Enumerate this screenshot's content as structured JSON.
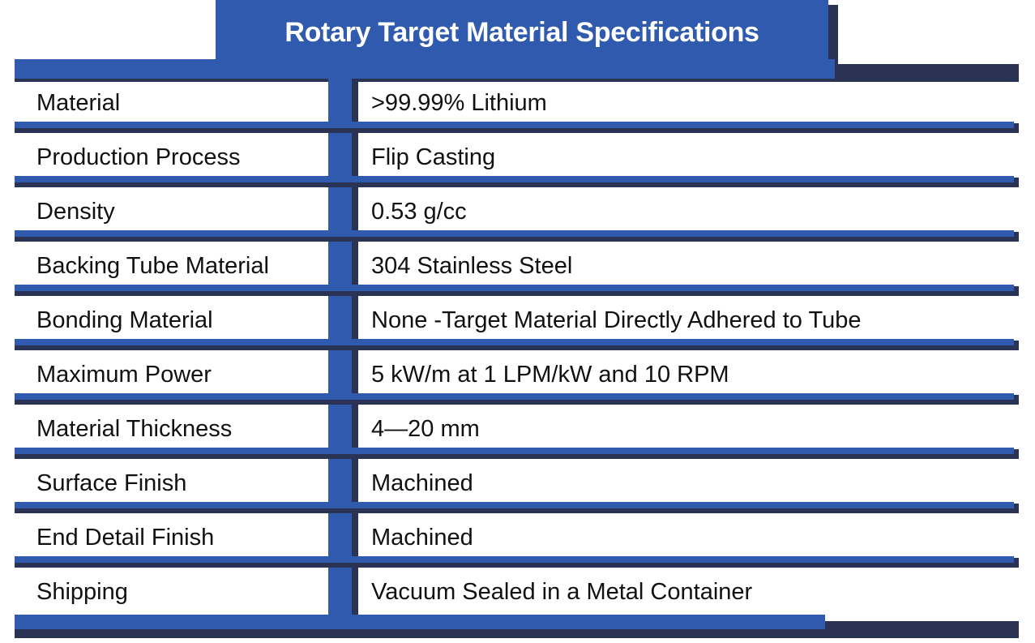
{
  "title": "Rotary Target Material Specifications",
  "colors": {
    "primary_blue": "#2f5aad",
    "dark_navy": "#2b3355",
    "text": "#111111",
    "background": "#ffffff"
  },
  "rows": [
    {
      "label": "Material",
      "value": ">99.99% Lithium"
    },
    {
      "label": "Production Process",
      "value": "Flip Casting"
    },
    {
      "label": "Density",
      "value": "0.53 g/cc"
    },
    {
      "label": "Backing Tube Material",
      "value": "304 Stainless Steel"
    },
    {
      "label": "Bonding Material",
      "value": "None -Target Material Directly Adhered to Tube"
    },
    {
      "label": "Maximum Power",
      "value": "5 kW/m at 1 LPM/kW and 10 RPM"
    },
    {
      "label": "Material Thickness",
      "value": "4—20 mm"
    },
    {
      "label": "Surface Finish",
      "value": "Machined"
    },
    {
      "label": "End Detail Finish",
      "value": "Machined"
    },
    {
      "label": "Shipping",
      "value": "Vacuum Sealed in a Metal Container"
    }
  ]
}
